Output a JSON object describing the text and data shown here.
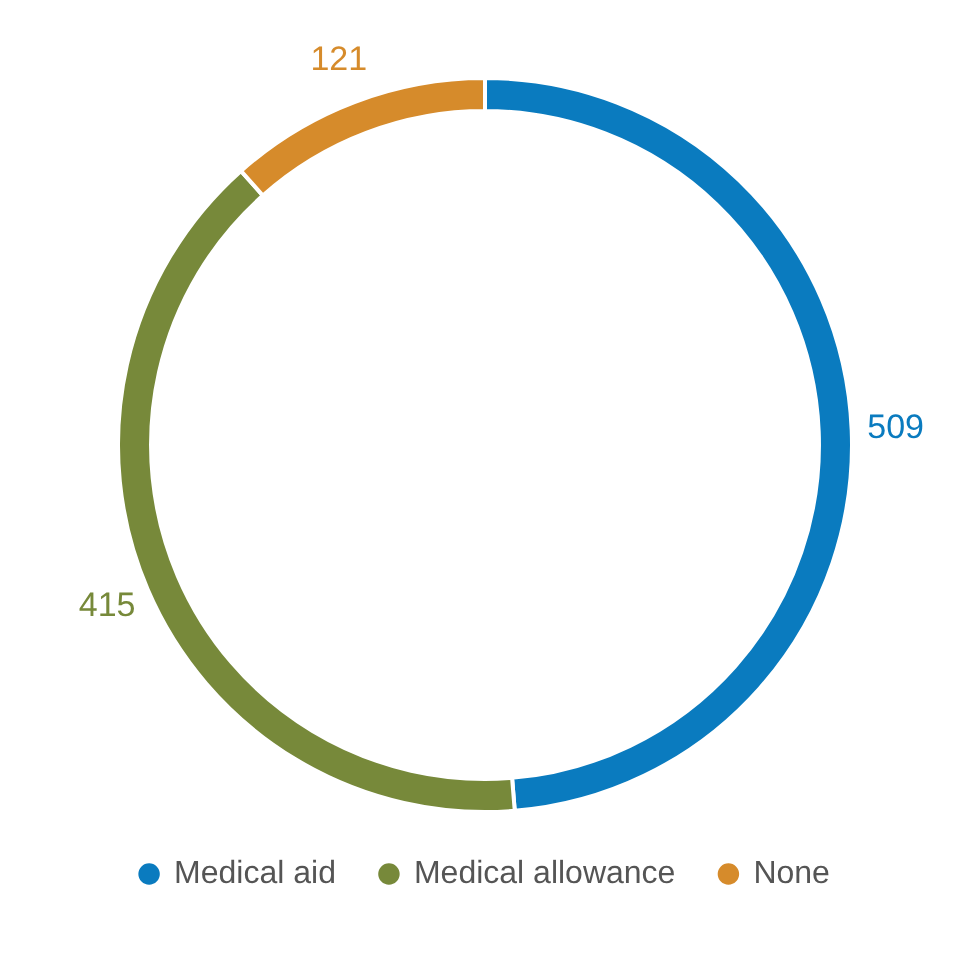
{
  "chart_data": {
    "type": "donut",
    "categories": [
      "Medical aid",
      "Medical allowance",
      "None"
    ],
    "values": [
      509,
      415,
      121
    ],
    "colors": [
      "#0a7bbf",
      "#77893a",
      "#d68b2b"
    ],
    "data_labels": true,
    "legend": "bottom"
  }
}
